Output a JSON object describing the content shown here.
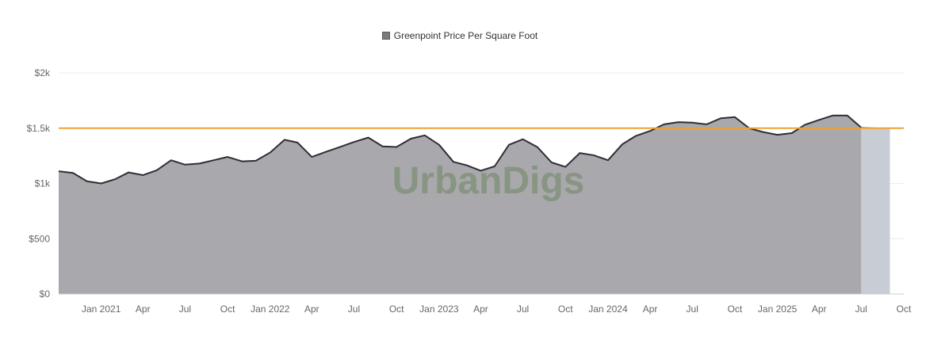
{
  "legend": {
    "label": "Greenpoint Price Per Square Foot"
  },
  "watermark": "UrbanDigs",
  "colors": {
    "area_fill": "#a9a8ad",
    "line": "#2f2e36",
    "projection_fill": "#c8ccd4",
    "reference_line": "#f2a033",
    "grid": "#ececec",
    "watermark": "#7c8f74",
    "tick_text": "#666666"
  },
  "chart_data": {
    "type": "area",
    "title": "",
    "xlabel": "",
    "ylabel": "",
    "ylim": [
      0,
      2000
    ],
    "y_ticks": [
      {
        "value": 0,
        "label": "$0"
      },
      {
        "value": 500,
        "label": "$500"
      },
      {
        "value": 1000,
        "label": "$1k"
      },
      {
        "value": 1500,
        "label": "$1.5k"
      },
      {
        "value": 2000,
        "label": "$2k"
      }
    ],
    "x_range": [
      "2020-10-01",
      "2025-10-01"
    ],
    "x_ticks": [
      {
        "date": "2021-01-01",
        "label": "Jan 2021"
      },
      {
        "date": "2021-04-01",
        "label": "Apr"
      },
      {
        "date": "2021-07-01",
        "label": "Jul"
      },
      {
        "date": "2021-10-01",
        "label": "Oct"
      },
      {
        "date": "2022-01-01",
        "label": "Jan 2022"
      },
      {
        "date": "2022-04-01",
        "label": "Apr"
      },
      {
        "date": "2022-07-01",
        "label": "Jul"
      },
      {
        "date": "2022-10-01",
        "label": "Oct"
      },
      {
        "date": "2023-01-01",
        "label": "Jan 2023"
      },
      {
        "date": "2023-04-01",
        "label": "Apr"
      },
      {
        "date": "2023-07-01",
        "label": "Jul"
      },
      {
        "date": "2023-10-01",
        "label": "Oct"
      },
      {
        "date": "2024-01-01",
        "label": "Jan 2024"
      },
      {
        "date": "2024-04-01",
        "label": "Apr"
      },
      {
        "date": "2024-07-01",
        "label": "Jul"
      },
      {
        "date": "2024-10-01",
        "label": "Oct"
      },
      {
        "date": "2025-01-01",
        "label": "Jan 2025"
      },
      {
        "date": "2025-04-01",
        "label": "Apr"
      },
      {
        "date": "2025-07-01",
        "label": "Jul"
      },
      {
        "date": "2025-10-01",
        "label": "Oct"
      }
    ],
    "reference_line": {
      "value": 1500
    },
    "series": [
      {
        "name": "Greenpoint Price Per Square Foot",
        "points": [
          [
            "2020-10-01",
            1110
          ],
          [
            "2020-11-01",
            1095
          ],
          [
            "2020-12-01",
            1020
          ],
          [
            "2021-01-01",
            1000
          ],
          [
            "2021-02-01",
            1040
          ],
          [
            "2021-03-01",
            1100
          ],
          [
            "2021-04-01",
            1075
          ],
          [
            "2021-05-01",
            1120
          ],
          [
            "2021-06-01",
            1210
          ],
          [
            "2021-07-01",
            1170
          ],
          [
            "2021-08-01",
            1180
          ],
          [
            "2021-09-01",
            1210
          ],
          [
            "2021-10-01",
            1240
          ],
          [
            "2021-11-01",
            1200
          ],
          [
            "2021-12-01",
            1205
          ],
          [
            "2022-01-01",
            1280
          ],
          [
            "2022-02-01",
            1395
          ],
          [
            "2022-03-01",
            1370
          ],
          [
            "2022-04-01",
            1240
          ],
          [
            "2022-05-01",
            1285
          ],
          [
            "2022-06-01",
            1330
          ],
          [
            "2022-07-01",
            1375
          ],
          [
            "2022-08-01",
            1415
          ],
          [
            "2022-09-01",
            1335
          ],
          [
            "2022-10-01",
            1330
          ],
          [
            "2022-11-01",
            1405
          ],
          [
            "2022-12-01",
            1435
          ],
          [
            "2023-01-01",
            1350
          ],
          [
            "2023-02-01",
            1195
          ],
          [
            "2023-03-01",
            1165
          ],
          [
            "2023-04-01",
            1115
          ],
          [
            "2023-05-01",
            1155
          ],
          [
            "2023-06-01",
            1350
          ],
          [
            "2023-07-01",
            1400
          ],
          [
            "2023-08-01",
            1330
          ],
          [
            "2023-09-01",
            1190
          ],
          [
            "2023-10-01",
            1150
          ],
          [
            "2023-11-01",
            1275
          ],
          [
            "2023-12-01",
            1255
          ],
          [
            "2024-01-01",
            1210
          ],
          [
            "2024-02-01",
            1355
          ],
          [
            "2024-03-01",
            1430
          ],
          [
            "2024-04-01",
            1475
          ],
          [
            "2024-05-01",
            1535
          ],
          [
            "2024-06-01",
            1555
          ],
          [
            "2024-07-01",
            1550
          ],
          [
            "2024-08-01",
            1535
          ],
          [
            "2024-09-01",
            1590
          ],
          [
            "2024-10-01",
            1600
          ],
          [
            "2024-11-01",
            1500
          ],
          [
            "2024-12-01",
            1465
          ],
          [
            "2025-01-01",
            1440
          ],
          [
            "2025-02-01",
            1455
          ],
          [
            "2025-03-01",
            1530
          ],
          [
            "2025-04-01",
            1575
          ],
          [
            "2025-05-01",
            1615
          ],
          [
            "2025-06-01",
            1615
          ],
          [
            "2025-07-01",
            1505
          ]
        ]
      }
    ],
    "projection": {
      "points": [
        [
          "2025-07-01",
          1505
        ],
        [
          "2025-08-01",
          1500
        ],
        [
          "2025-09-01",
          1500
        ]
      ]
    },
    "grid": true,
    "legend_position": "top-center"
  }
}
